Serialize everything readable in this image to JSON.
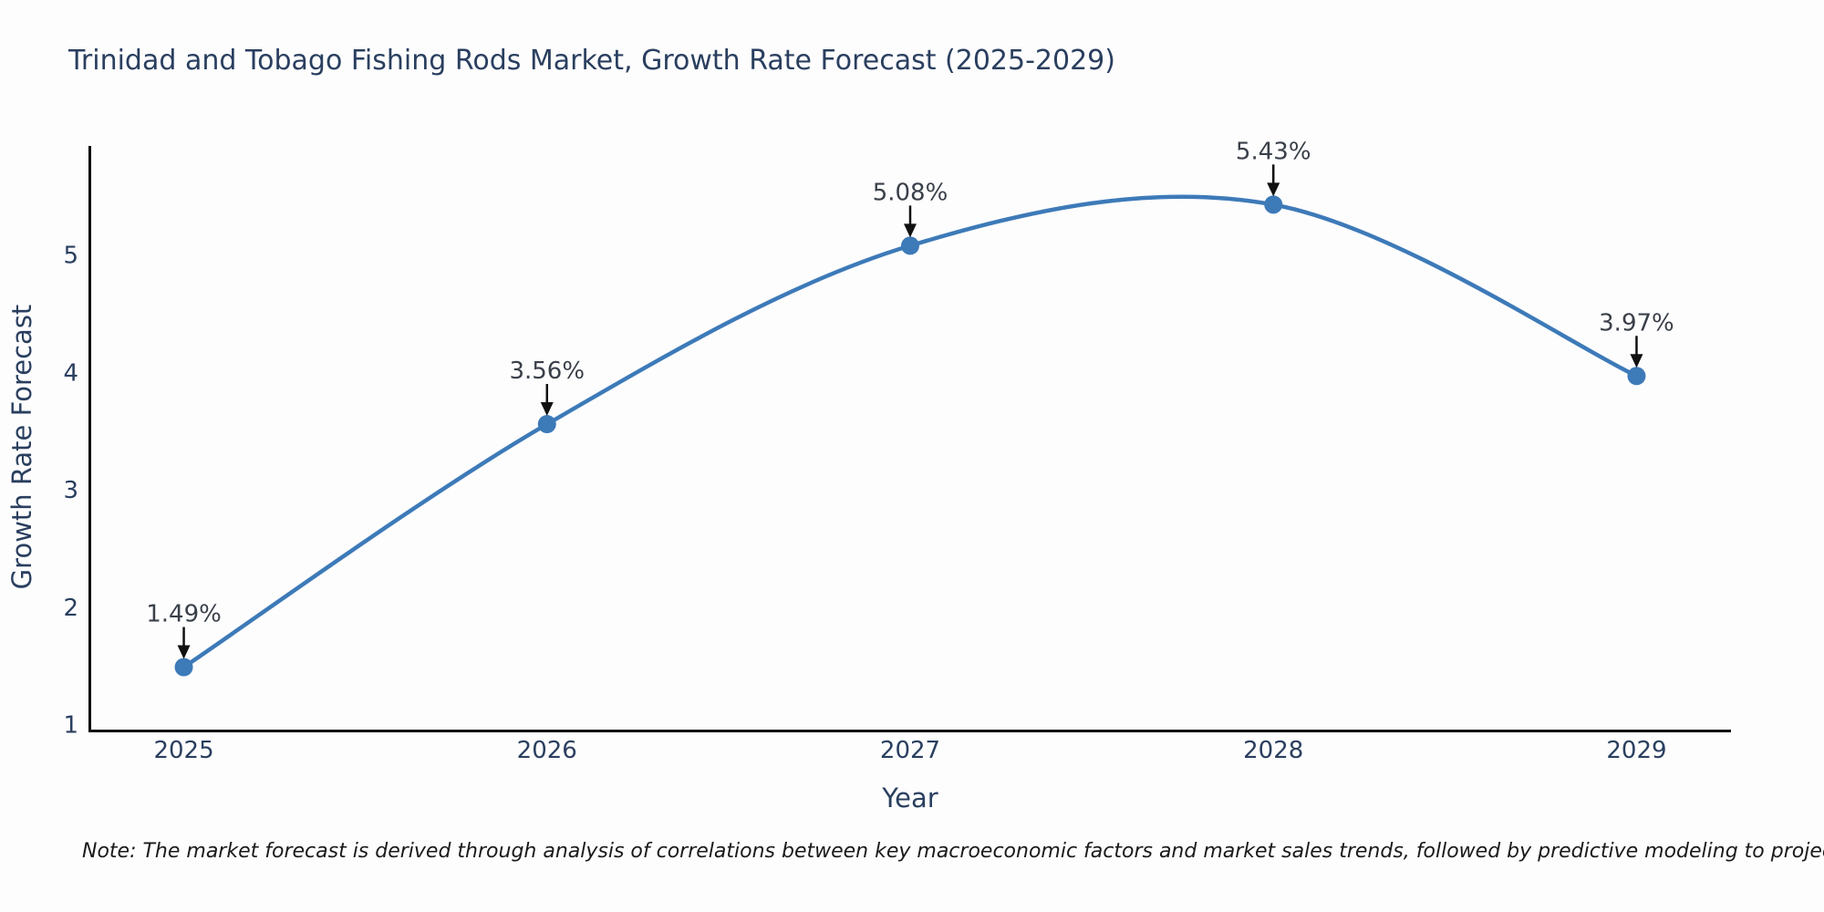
{
  "figure": {
    "background": "#fdfdfe"
  },
  "chart_data": {
    "type": "line",
    "title": "Trinidad and Tobago Fishing Rods Market, Growth Rate Forecast (2025-2029)",
    "xlabel": "Year",
    "ylabel": "Growth Rate Forecast",
    "x": [
      2025,
      2026,
      2027,
      2028,
      2029
    ],
    "values": [
      1.49,
      3.56,
      5.08,
      5.43,
      3.97
    ],
    "point_labels": [
      "1.49%",
      "3.56%",
      "5.08%",
      "5.43%",
      "3.97%"
    ],
    "xticks": [
      2025,
      2026,
      2027,
      2028,
      2029
    ],
    "yticks": [
      1,
      2,
      3,
      4,
      5
    ],
    "xlim": [
      2024.74,
      2029.26
    ],
    "ylim": [
      0.95,
      5.93
    ],
    "line_shape": "spline",
    "grid": false,
    "legend": "none",
    "colors": {
      "line": "#3d7ab8",
      "marker": "#3d7ab8",
      "axis": "#0d0d0d",
      "text": "#2a3f5f",
      "annotation": "#3a4049",
      "arrow": "#111111"
    },
    "note": "Note: The market forecast is derived through analysis of correlations between key macroeconomic factors and market sales trends, followed by predictive modeling to project future sales."
  }
}
